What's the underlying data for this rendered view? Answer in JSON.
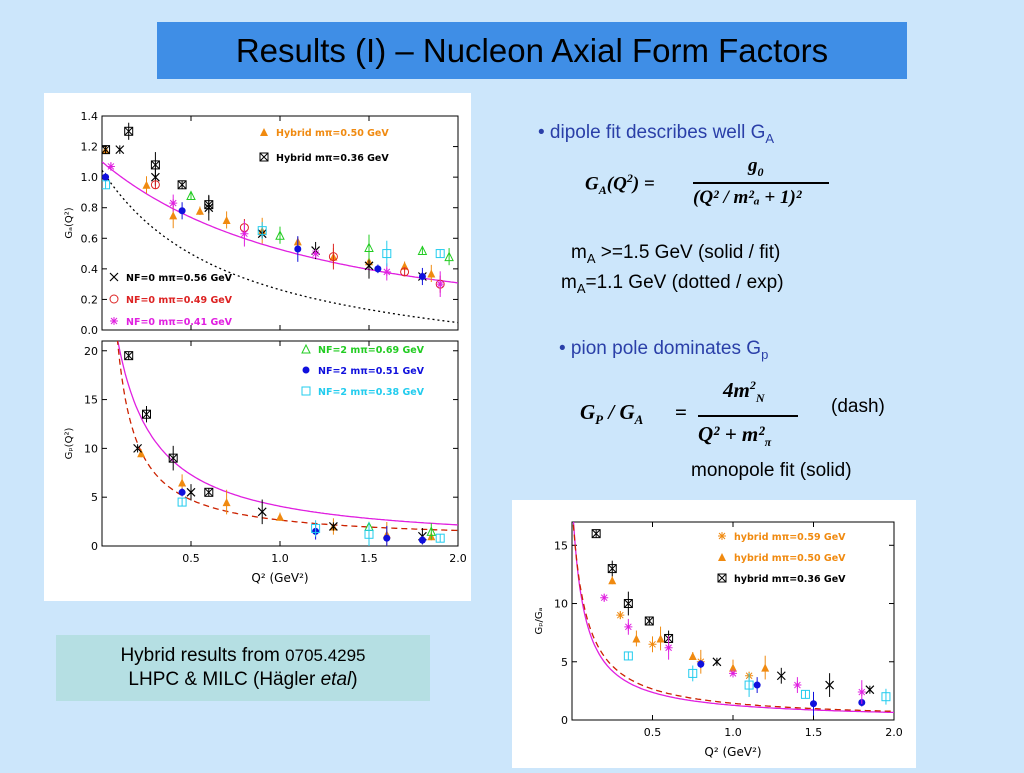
{
  "slide": {
    "title": "Results (I) – Nucleon Axial Form Factors",
    "bullet1": "• dipole fit describes well G",
    "bullet1_sub": "A",
    "formula1_lhs": "G",
    "formula1_lhs_sub": "A",
    "formula1_arg": "(Q",
    "formula1_arg_sup": "2",
    "formula1_arg_close": ") =",
    "formula1_num": "g",
    "formula1_num_sub": "0",
    "formula1_den": "(Q² / m²ₐ + 1)²",
    "ma_line1_a": "m",
    "ma_line1_sub": "A",
    "ma_line1_b": " >=1.5 GeV (solid / fit)",
    "ma_line2_a": "m",
    "ma_line2_sub": "A",
    "ma_line2_b": "=1.1 GeV (dotted / exp)",
    "bullet2": "• pion pole dominates G",
    "bullet2_sub": "p",
    "formula2_lhs": "G",
    "formula2_lhs_sub1": "P",
    "formula2_mid": " / G",
    "formula2_lhs_sub2": "A",
    "formula2_eq": "=",
    "formula2_num": "4m",
    "formula2_num_sup": "2",
    "formula2_num_sub": "N",
    "formula2_den": "Q² + m²",
    "formula2_den_sub": "π",
    "dash_label": "(dash)",
    "monopole_label": "monopole fit (solid)",
    "note_line1_a": "Hybrid results from ",
    "note_line1_b": "0705.4295",
    "note_line2_a": "LHPC & MILC (Hägler ",
    "note_line2_b": "etal",
    "note_line2_c": ")"
  },
  "colors": {
    "title_bg": "#3f8ee6",
    "bullet_text": "#2a3fa8",
    "note_bg": "#b5dfe3",
    "fit_solid": "#e020e0",
    "dash": "#cc2200",
    "orange": "#f08a10",
    "black": "#000000",
    "red": "#dd2222",
    "magenta": "#e020e0",
    "green": "#22cc22",
    "blue": "#1010dd",
    "cyan": "#22ccee"
  },
  "chart_data": [
    {
      "type": "scatter",
      "name_panel": "GA",
      "ylabel": "G_A(Q²)",
      "xlim": [
        0,
        2.0
      ],
      "ylim": [
        0,
        1.4
      ],
      "yticks": [
        "0.0",
        "0.2",
        "0.4",
        "0.6",
        "0.8",
        "1.0",
        "1.2",
        "1.4"
      ],
      "legend": [
        {
          "label": "Hybrid  mπ=0.50  GeV",
          "color": "#f08a10",
          "marker": "triangle"
        },
        {
          "label": "Hybrid  mπ=0.36  GeV",
          "color": "#000000",
          "marker": "boxcross"
        },
        {
          "label": "N_F=0  mπ=0.56  GeV",
          "color": "#000000",
          "marker": "cross"
        },
        {
          "label": "N_F=0  mπ=0.49  GeV",
          "color": "#dd2222",
          "marker": "circle"
        },
        {
          "label": "N_F=0  mπ=0.41  GeV",
          "color": "#e020e0",
          "marker": "star"
        }
      ],
      "series": [
        {
          "name": "Hybrid  mπ=0.50  GeV",
          "color": "#f08a10",
          "marker": "triangle",
          "x": [
            0.02,
            0.25,
            0.4,
            0.55,
            0.7,
            0.9,
            1.1,
            1.3,
            1.5,
            1.7,
            1.85
          ],
          "y": [
            1.18,
            0.95,
            0.75,
            0.78,
            0.72,
            0.65,
            0.58,
            0.48,
            0.45,
            0.42,
            0.37
          ]
        },
        {
          "name": "Hybrid  mπ=0.36  GeV",
          "color": "#000000",
          "marker": "boxcross",
          "x": [
            0.02,
            0.15,
            0.3,
            0.45,
            0.6
          ],
          "y": [
            1.18,
            1.3,
            1.08,
            0.95,
            0.82
          ]
        },
        {
          "name": "N_F=0  mπ=0.56  GeV",
          "color": "#000000",
          "marker": "cross",
          "x": [
            0.1,
            0.3,
            0.6,
            0.9,
            1.2,
            1.5,
            1.8
          ],
          "y": [
            1.18,
            1.0,
            0.8,
            0.63,
            0.52,
            0.42,
            0.35
          ]
        },
        {
          "name": "N_F=0  mπ=0.49  GeV",
          "color": "#dd2222",
          "marker": "circle",
          "x": [
            0.3,
            0.8,
            1.3,
            1.7,
            1.9
          ],
          "y": [
            0.95,
            0.67,
            0.48,
            0.38,
            0.3
          ]
        },
        {
          "name": "N_F=0  mπ=0.41  GeV",
          "color": "#e020e0",
          "marker": "star",
          "x": [
            0.05,
            0.4,
            0.8,
            1.2,
            1.6,
            1.9
          ],
          "y": [
            1.07,
            0.83,
            0.63,
            0.5,
            0.38,
            0.3
          ]
        },
        {
          "name": "N_F=2  mπ=0.69  GeV",
          "color": "#22cc22",
          "marker": "triangle-open",
          "x": [
            0.5,
            1.0,
            1.5,
            1.8,
            1.95
          ],
          "y": [
            0.88,
            0.62,
            0.54,
            0.52,
            0.48
          ]
        },
        {
          "name": "N_F=2  mπ=0.51  GeV",
          "color": "#1010dd",
          "marker": "dot",
          "x": [
            0.02,
            0.45,
            1.1,
            1.55,
            1.8
          ],
          "y": [
            1.0,
            0.78,
            0.53,
            0.4,
            0.35
          ]
        },
        {
          "name": "N_F=2  mπ=0.38  GeV",
          "color": "#22ccee",
          "marker": "square-open",
          "x": [
            0.02,
            0.9,
            1.6,
            1.9
          ],
          "y": [
            0.95,
            0.65,
            0.5,
            0.5
          ]
        }
      ],
      "fit_solid_mA": 1.5,
      "fit_dotted_mA": 1.1,
      "g0": 1.1
    },
    {
      "type": "scatter",
      "name_panel": "Gp",
      "ylabel": "G_p(Q²)",
      "xlabel": "Q²  (GeV²)",
      "xlim": [
        0,
        2.0
      ],
      "ylim": [
        0,
        21
      ],
      "xticks": [
        "0.5",
        "1.0",
        "1.5",
        "2.0"
      ],
      "yticks": [
        "0",
        "5",
        "10",
        "15",
        "20"
      ],
      "legend": [
        {
          "label": "N_F=2  mπ=0.69  GeV",
          "color": "#22cc22",
          "marker": "triangle-open"
        },
        {
          "label": "N_F=2  mπ=0.51  GeV",
          "color": "#1010dd",
          "marker": "dot"
        },
        {
          "label": "N_F=2  mπ=0.38  GeV",
          "color": "#22ccee",
          "marker": "square-open"
        }
      ],
      "series": [
        {
          "name": "Hybrid  mπ=0.36  GeV",
          "color": "#000000",
          "marker": "boxcross",
          "x": [
            0.15,
            0.25,
            0.4,
            0.6
          ],
          "y": [
            19.5,
            13.5,
            9.0,
            5.5
          ]
        },
        {
          "name": "Hybrid  mπ=0.50  GeV",
          "color": "#f08a10",
          "marker": "triangle",
          "x": [
            0.22,
            0.45,
            0.7,
            1.0,
            1.3,
            1.6,
            1.85
          ],
          "y": [
            9.5,
            6.5,
            4.5,
            3.0,
            2.0,
            1.2,
            1.0
          ]
        },
        {
          "name": "N_F=0  mπ=0.56  GeV",
          "color": "#000000",
          "marker": "cross",
          "x": [
            0.2,
            0.5,
            0.9,
            1.3,
            1.8
          ],
          "y": [
            10.0,
            5.5,
            3.5,
            2.0,
            1.0
          ]
        },
        {
          "name": "N_F=2  mπ=0.69  GeV",
          "color": "#22cc22",
          "marker": "triangle-open",
          "x": [
            1.5,
            1.85
          ],
          "y": [
            2.0,
            1.5
          ]
        },
        {
          "name": "N_F=2  mπ=0.51  GeV",
          "color": "#1010dd",
          "marker": "dot",
          "x": [
            0.45,
            1.2,
            1.6,
            1.8
          ],
          "y": [
            5.5,
            1.5,
            0.8,
            0.6
          ]
        },
        {
          "name": "N_F=2  mπ=0.38  GeV",
          "color": "#22ccee",
          "marker": "square-open",
          "x": [
            0.45,
            1.2,
            1.5,
            1.9
          ],
          "y": [
            4.5,
            1.8,
            1.2,
            0.8
          ]
        }
      ],
      "monopole_A": 4.6,
      "monopole_m2": 0.13,
      "dash_A": 2.2,
      "dash_m2": 0.0
    },
    {
      "type": "scatter",
      "name_panel": "GpGA",
      "ylabel": "G_p/G_A",
      "xlabel": "Q²  (GeV²)",
      "xlim": [
        0,
        2.0
      ],
      "ylim": [
        0,
        17
      ],
      "xticks": [
        "0.5",
        "1.0",
        "1.5",
        "2.0"
      ],
      "yticks": [
        "0",
        "5",
        "10",
        "15"
      ],
      "legend": [
        {
          "label": "hybrid  mπ=0.59  GeV",
          "color": "#f08a10",
          "marker": "star"
        },
        {
          "label": "hybrid  mπ=0.50  GeV",
          "color": "#f08a10",
          "marker": "triangle"
        },
        {
          "label": "hybrid  mπ=0.36  GeV",
          "color": "#000000",
          "marker": "boxcross"
        }
      ],
      "series": [
        {
          "name": "hybrid  mπ=0.36  GeV",
          "color": "#000000",
          "marker": "boxcross",
          "x": [
            0.15,
            0.25,
            0.35,
            0.48,
            0.6
          ],
          "y": [
            16.0,
            13.0,
            10.0,
            8.5,
            7.0
          ]
        },
        {
          "name": "hybrid  mπ=0.50  GeV",
          "color": "#f08a10",
          "marker": "triangle",
          "x": [
            0.25,
            0.4,
            0.55,
            0.75,
            1.0,
            1.2
          ],
          "y": [
            12.0,
            7.0,
            7.0,
            5.5,
            4.5,
            4.5
          ]
        },
        {
          "name": "hybrid  mπ=0.59  GeV",
          "color": "#f08a10",
          "marker": "star",
          "x": [
            0.3,
            0.5,
            0.8,
            1.1
          ],
          "y": [
            9.0,
            6.5,
            5.0,
            3.8
          ]
        },
        {
          "name": "cross",
          "color": "#000000",
          "marker": "cross",
          "x": [
            0.9,
            1.3,
            1.6,
            1.85
          ],
          "y": [
            5.0,
            3.8,
            3.0,
            2.6
          ]
        },
        {
          "name": "blue",
          "color": "#1010dd",
          "marker": "dot",
          "x": [
            0.8,
            1.15,
            1.5,
            1.8
          ],
          "y": [
            4.8,
            3.0,
            1.4,
            1.5
          ]
        },
        {
          "name": "cyan",
          "color": "#22ccee",
          "marker": "square-open",
          "x": [
            0.35,
            0.75,
            1.1,
            1.45,
            1.95
          ],
          "y": [
            5.5,
            4.0,
            3.0,
            2.2,
            2.0
          ]
        },
        {
          "name": "magenta",
          "color": "#e020e0",
          "marker": "star",
          "x": [
            0.2,
            0.35,
            0.6,
            1.0,
            1.4,
            1.8
          ],
          "y": [
            10.5,
            8.0,
            6.2,
            4.0,
            3.0,
            2.4
          ]
        }
      ],
      "monopole_A": 1.35,
      "monopole_m2": 0.07
    }
  ]
}
